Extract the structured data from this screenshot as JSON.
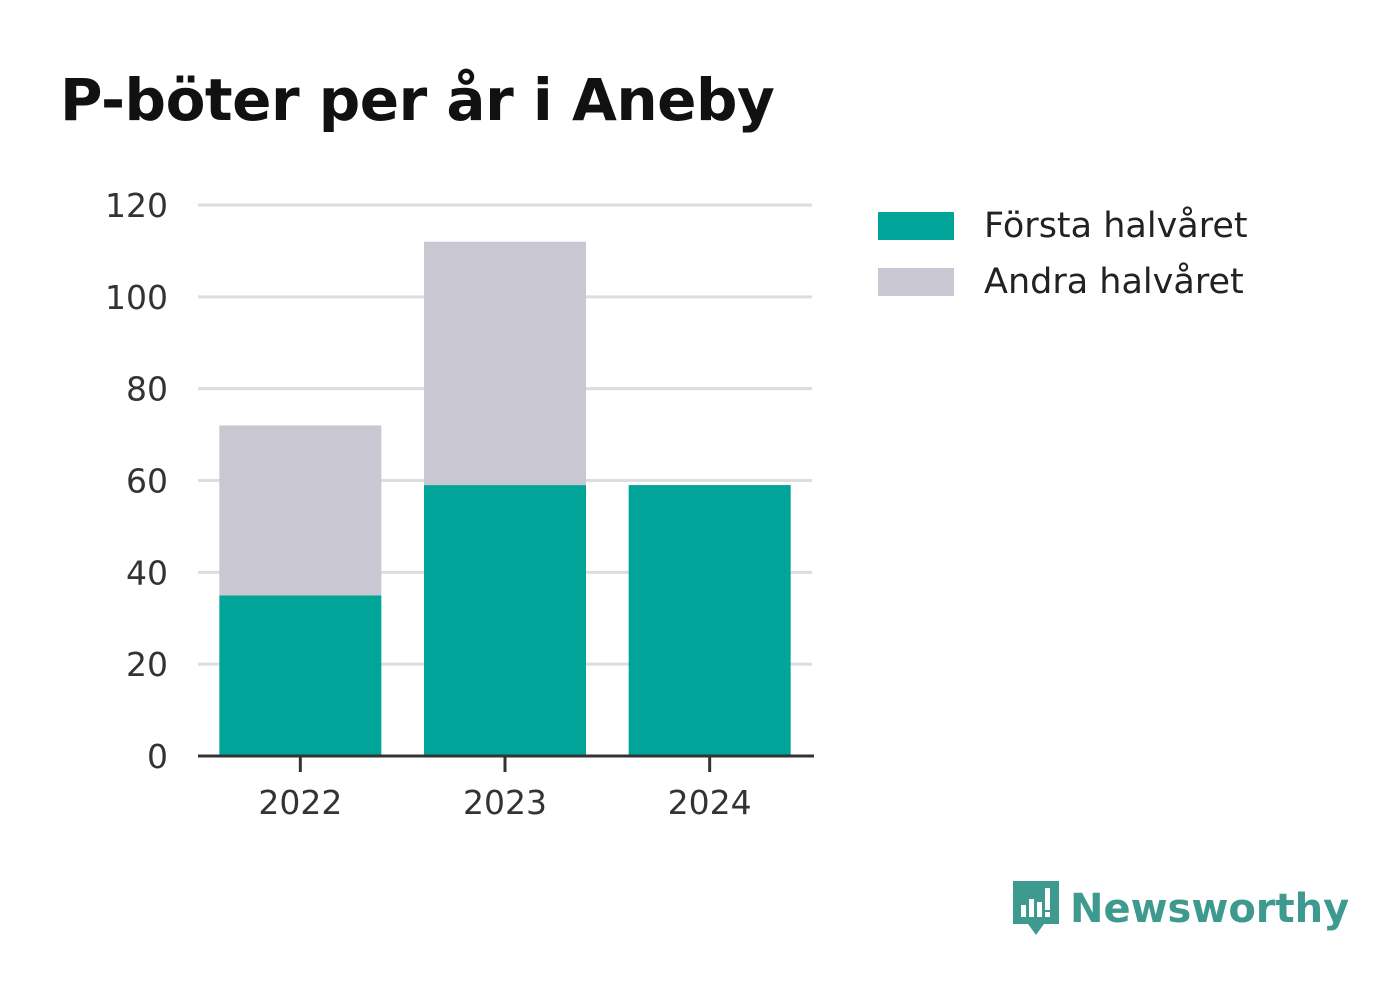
{
  "title": "P-böter per år i Aneby",
  "brand": {
    "name": "Newsworthy",
    "icon": "newsworthy-logo-icon",
    "color": "#3e9a8f"
  },
  "colors": {
    "first_half": "#00a499",
    "second_half": "#c8c7d2",
    "grid": "#dddddd",
    "axis": "#333333",
    "text": "#333333"
  },
  "legend": [
    {
      "label": "Första halvåret",
      "color": "#00a499"
    },
    {
      "label": "Andra halvåret",
      "color": "#c8c7d2"
    }
  ],
  "chart_data": {
    "type": "bar",
    "stacked": true,
    "title": "P-böter per år i Aneby",
    "categories": [
      "2022",
      "2023",
      "2024"
    ],
    "series": [
      {
        "name": "Första halvåret",
        "values": [
          35,
          59,
          59
        ]
      },
      {
        "name": "Andra halvåret",
        "values": [
          37,
          53,
          0
        ]
      }
    ],
    "ylim": [
      0,
      120
    ],
    "yticks": [
      0,
      20,
      40,
      60,
      80,
      100,
      120
    ],
    "xlabel": "",
    "ylabel": "",
    "grid": true,
    "legend_position": "right"
  }
}
